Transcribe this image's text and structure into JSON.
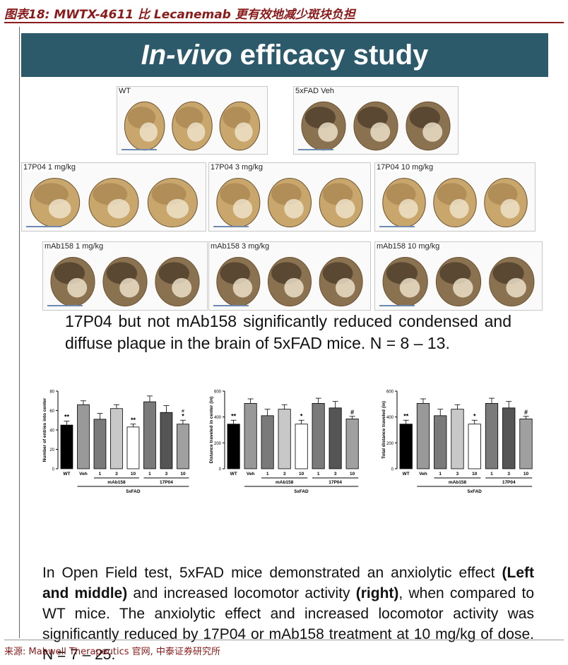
{
  "figure_title": "图表18: MWTX-4611 比 Lecanemab 更有效地减少斑块负担",
  "slide_header": {
    "italic": "In-vivo",
    "rest": " efficacy study"
  },
  "panels": [
    {
      "label": "WT"
    },
    {
      "label": "5xFAD Veh"
    },
    {
      "label": "17P04 1 mg/kg"
    },
    {
      "label": "17P04 3 mg/kg"
    },
    {
      "label": "17P04 10 mg/kg"
    },
    {
      "label": "mAb158 1 mg/kg"
    },
    {
      "label": "mAb158 3 mg/kg"
    },
    {
      "label": "mAb158 10 mg/kg"
    }
  ],
  "para1": "17P04 but not mAb158 significantly reduced condensed and diffuse plaque in the brain of 5xFAD mice. N = 8 – 13.",
  "para2": {
    "p1": "In Open Field test, 5xFAD mice demonstrated an anxiolytic effect ",
    "b1": "(Left and middle)",
    "p2": " and increased locomotor activity ",
    "b2": "(right)",
    "p3": ", when compared to WT mice. The anxiolytic effect and increased locomotor activity was significantly reduced by 17P04 or mAb158 treatment at 10 mg/kg of dose. N = 7 – 25."
  },
  "source": "来源: Mabwell Therapeutics 官网, 中泰证券研究所",
  "chart_data": [
    {
      "type": "bar",
      "ylabel": "Number of entries into center",
      "ylim": [
        0,
        80
      ],
      "yticks": [
        0,
        20,
        40,
        60,
        80
      ],
      "categories": [
        "WT",
        "Veh",
        "1",
        "3",
        "10",
        "1",
        "3",
        "10"
      ],
      "values": [
        45,
        66,
        51,
        62,
        43,
        69,
        58,
        46
      ],
      "errors": [
        4,
        4,
        6,
        4,
        3,
        6,
        7,
        4
      ],
      "annotations": [
        "**",
        "",
        "",
        "",
        "**",
        "",
        "",
        "*"
      ],
      "annotations2": [
        "",
        "",
        "",
        "",
        "",
        "",
        "",
        "#"
      ],
      "group_labels": [
        "mAb158",
        "17P04"
      ],
      "xlabel": "5xFAD"
    },
    {
      "type": "bar",
      "ylabel": "Distance traveled in center (in)",
      "ylim": [
        0,
        600
      ],
      "yticks": [
        0,
        200,
        400,
        600
      ],
      "categories": [
        "WT",
        "Veh",
        "1",
        "3",
        "10",
        "1",
        "3",
        "10"
      ],
      "values": [
        345,
        505,
        410,
        460,
        345,
        505,
        470,
        385
      ],
      "errors": [
        30,
        35,
        50,
        35,
        30,
        40,
        50,
        20
      ],
      "annotations": [
        "**",
        "",
        "",
        "",
        "*",
        "",
        "",
        "#"
      ],
      "annotations2": [
        "",
        "",
        "",
        "",
        "",
        "",
        "",
        ""
      ],
      "group_labels": [
        "mAb158",
        "17P04"
      ],
      "xlabel": "5xFAD"
    },
    {
      "type": "bar",
      "ylabel": "Total distance traveled (in)",
      "ylim": [
        0,
        600
      ],
      "yticks": [
        0,
        200,
        400,
        600
      ],
      "categories": [
        "WT",
        "Veh",
        "1",
        "3",
        "10",
        "1",
        "3",
        "10"
      ],
      "values": [
        345,
        505,
        410,
        460,
        345,
        505,
        470,
        385
      ],
      "errors": [
        30,
        35,
        50,
        35,
        30,
        40,
        50,
        20
      ],
      "annotations": [
        "**",
        "",
        "",
        "",
        "*",
        "",
        "",
        "#"
      ],
      "annotations2": [
        "",
        "",
        "",
        "",
        "",
        "",
        "",
        ""
      ],
      "group_labels": [
        "mAb158",
        "17P04"
      ],
      "xlabel": "5xFAD"
    }
  ],
  "colors": {
    "header": "#2d5a6b",
    "title": "#8b1a1a",
    "bars": [
      "#000000",
      "#999999",
      "#7a7a7a",
      "#c8c8c8",
      "#ffffff",
      "#7a7a7a",
      "#555555",
      "#a0a0a0"
    ]
  }
}
